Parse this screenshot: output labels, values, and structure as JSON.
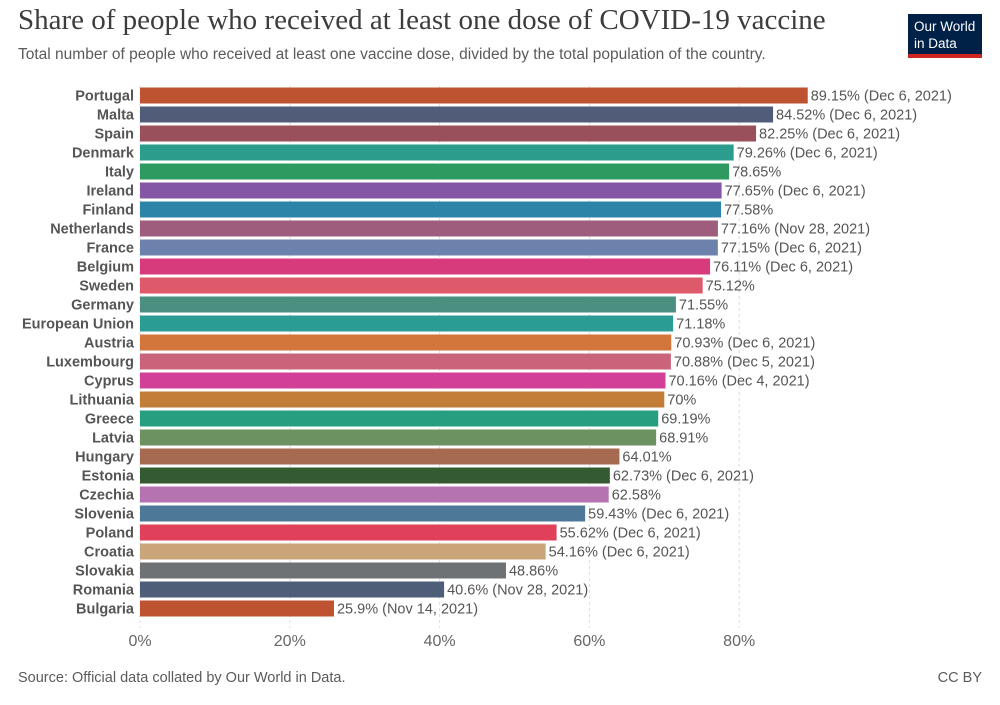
{
  "header": {
    "title": "Share of people who received at least one dose of COVID-19 vaccine",
    "subtitle": "Total number of people who received at least one vaccine dose, divided by the total population of the country."
  },
  "logo": {
    "line1": "Our World",
    "line2": "in Data"
  },
  "footer": {
    "source": "Source: Official data collated by Our World in Data.",
    "license": "CC BY"
  },
  "chart_data": {
    "type": "bar",
    "orientation": "horizontal",
    "title": "Share of people who received at least one dose of COVID-19 vaccine",
    "subtitle": "Total number of people who received at least one vaccine dose, divided by the total population of the country.",
    "xlim": [
      0,
      90
    ],
    "x_ticks": [
      0,
      20,
      40,
      60,
      80
    ],
    "x_tick_labels": [
      "0%",
      "20%",
      "40%",
      "60%",
      "80%"
    ],
    "grid": "vertical dashed",
    "categories": [
      "Portugal",
      "Malta",
      "Spain",
      "Denmark",
      "Italy",
      "Ireland",
      "Finland",
      "Netherlands",
      "France",
      "Belgium",
      "Sweden",
      "Germany",
      "European Union",
      "Austria",
      "Luxembourg",
      "Cyprus",
      "Lithuania",
      "Greece",
      "Latvia",
      "Hungary",
      "Estonia",
      "Czechia",
      "Slovenia",
      "Poland",
      "Croatia",
      "Slovakia",
      "Romania",
      "Bulgaria"
    ],
    "values": [
      89.15,
      84.52,
      82.25,
      79.26,
      78.65,
      77.65,
      77.58,
      77.16,
      77.15,
      76.11,
      75.12,
      71.55,
      71.18,
      70.93,
      70.88,
      70.16,
      70,
      69.19,
      68.91,
      64.01,
      62.73,
      62.58,
      59.43,
      55.62,
      54.16,
      48.86,
      40.6,
      25.9
    ],
    "value_labels": [
      "89.15% (Dec 6, 2021)",
      "84.52% (Dec 6, 2021)",
      "82.25% (Dec 6, 2021)",
      "79.26% (Dec 6, 2021)",
      "78.65%",
      "77.65% (Dec 6, 2021)",
      "77.58%",
      "77.16% (Nov 28, 2021)",
      "77.15% (Dec 6, 2021)",
      "76.11% (Dec 6, 2021)",
      "75.12%",
      "71.55%",
      "71.18%",
      "70.93% (Dec 6, 2021)",
      "70.88% (Dec 5, 2021)",
      "70.16% (Dec 4, 2021)",
      "70%",
      "69.19%",
      "68.91%",
      "64.01%",
      "62.73% (Dec 6, 2021)",
      "62.58%",
      "59.43% (Dec 6, 2021)",
      "55.62% (Dec 6, 2021)",
      "54.16% (Dec 6, 2021)",
      "48.86%",
      "40.6% (Nov 28, 2021)",
      "25.9% (Nov 14, 2021)"
    ],
    "colors": [
      "#bd5330",
      "#505c78",
      "#99505a",
      "#2c9d8c",
      "#2e9a5f",
      "#8357a6",
      "#2c84a8",
      "#9f5d7e",
      "#6c82ac",
      "#d73b7c",
      "#de5969",
      "#4a8f80",
      "#2a9c94",
      "#d2763b",
      "#c9647a",
      "#d23f98",
      "#c27d38",
      "#279e7f",
      "#6d9262",
      "#a56a50",
      "#345a32",
      "#b673b1",
      "#4e7898",
      "#e0405a",
      "#caa57a",
      "#6f7274",
      "#4f5e78",
      "#bd5330"
    ]
  }
}
